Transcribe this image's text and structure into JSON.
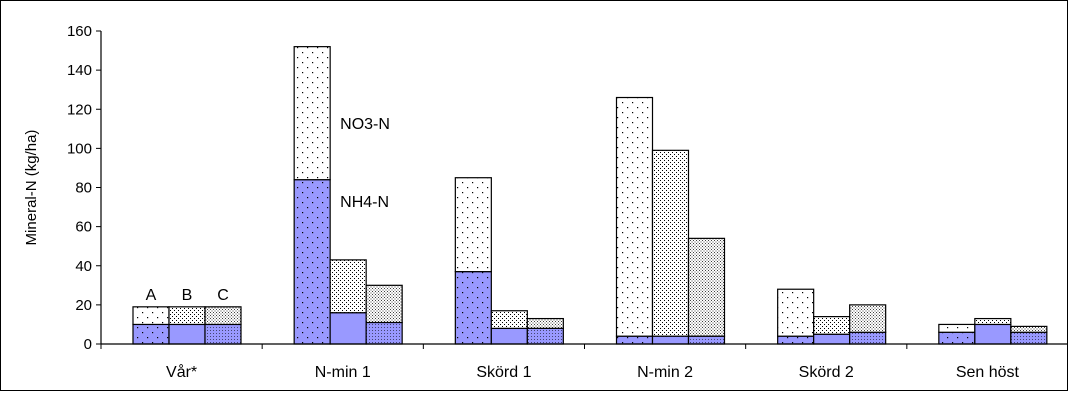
{
  "chart_data": {
    "type": "bar",
    "stacked": true,
    "ylabel": "Mineral-N (kg/ha)",
    "ylim": [
      0,
      160
    ],
    "yticks": [
      "0",
      "20",
      "40",
      "60",
      "80",
      "100",
      "120",
      "140",
      "160"
    ],
    "categories": [
      "Vår*",
      "N-min 1",
      "Skörd 1",
      "N-min 2",
      "Skörd 2",
      "Sen höst"
    ],
    "treatments": [
      "A",
      "B",
      "C"
    ],
    "series": [
      {
        "name": "NH4-N",
        "colors": {
          "A": "#9999ff",
          "B": "#9999ff",
          "C": "#9999ff"
        },
        "values": {
          "A": [
            10,
            84,
            37,
            4,
            4,
            6
          ],
          "B": [
            10,
            16,
            8,
            4,
            5,
            10
          ],
          "C": [
            10,
            11,
            8,
            4,
            6,
            6
          ]
        }
      },
      {
        "name": "NO3-N",
        "colors": {
          "A": "#ffffff",
          "B": "#ffffff",
          "C": "#ffffff"
        },
        "values": {
          "A": [
            9,
            68,
            48,
            122,
            24,
            4
          ],
          "B": [
            9,
            27,
            9,
            95,
            9,
            3
          ],
          "C": [
            9,
            19,
            5,
            50,
            14,
            3
          ]
        }
      }
    ],
    "annotations": [
      {
        "text": "A",
        "category": "Vår*",
        "treatment": "A"
      },
      {
        "text": "B",
        "category": "Vår*",
        "treatment": "B"
      },
      {
        "text": "C",
        "category": "Vår*",
        "treatment": "C"
      },
      {
        "text": "NO3-N",
        "category": "N-min 1",
        "y": 113
      },
      {
        "text": "NH4-N",
        "category": "N-min 1",
        "y": 73
      }
    ],
    "grid": false,
    "legend": "none"
  }
}
